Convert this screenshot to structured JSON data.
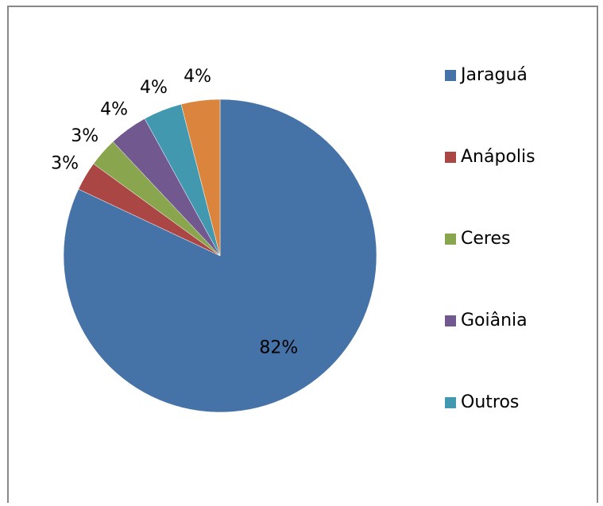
{
  "chart_data": {
    "type": "pie",
    "categories": [
      "Jaraguá",
      "Anápolis",
      "Ceres",
      "Goiânia",
      "Outros",
      null
    ],
    "values": [
      82,
      3,
      3,
      4,
      4,
      4
    ],
    "value_labels": [
      "82%",
      "3%",
      "3%",
      "4%",
      "4%",
      "4%"
    ],
    "colors": [
      "#4572a7",
      "#aa4643",
      "#89a54e",
      "#71588f",
      "#4198af",
      "#db843d"
    ],
    "legend": "right"
  }
}
